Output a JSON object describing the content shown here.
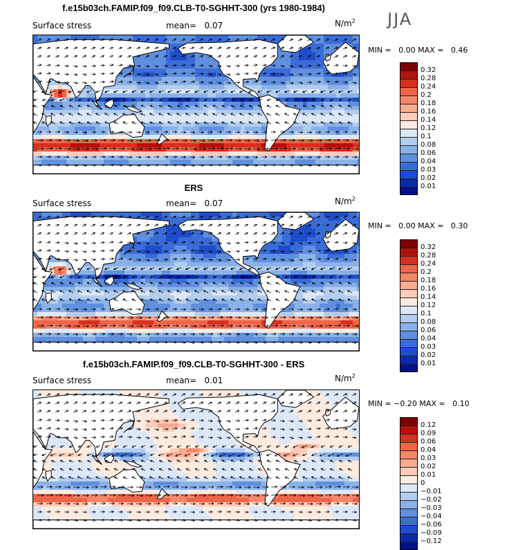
{
  "season": "JJA",
  "panels": [
    {
      "title": "f.e15b03ch.FAMIP.f09_f09.CLB-T0-SGHHT-300 (yrs 1980-1984)",
      "field": "Surface stress",
      "mean_label": "mean=",
      "mean_value": "0.07",
      "units": "N/m",
      "units_exp": "2",
      "minmax": "MIN =   0.00 MAX =   0.46",
      "colorbar": {
        "labels": [
          "0.32",
          "0.28",
          "0.24",
          "0.2",
          "0.18",
          "0.16",
          "0.14",
          "0.12",
          "0.1",
          "0.08",
          "0.06",
          "0.04",
          "0.03",
          "0.02",
          "0.01"
        ],
        "colors": [
          "#7f0000",
          "#b0120c",
          "#d7301f",
          "#ef6548",
          "#f4866a",
          "#f9aa8f",
          "#fdccb8",
          "#fdebe0",
          "#dce8f7",
          "#b3cdef",
          "#8bb2e8",
          "#5f8fde",
          "#3a6cd6",
          "#1f4cc8",
          "#0b2aa8",
          "#03108a"
        ]
      }
    },
    {
      "title": "ERS",
      "field": "Surface stress",
      "mean_label": "mean=",
      "mean_value": "0.07",
      "units": "N/m",
      "units_exp": "2",
      "minmax": "MIN =   0.00 MAX =   0.30",
      "colorbar": {
        "labels": [
          "0.32",
          "0.28",
          "0.24",
          "0.2",
          "0.18",
          "0.16",
          "0.14",
          "0.12",
          "0.1",
          "0.08",
          "0.06",
          "0.04",
          "0.03",
          "0.02",
          "0.01"
        ],
        "colors": [
          "#7f0000",
          "#b0120c",
          "#d7301f",
          "#ef6548",
          "#f4866a",
          "#f9aa8f",
          "#fdccb8",
          "#fdebe0",
          "#dce8f7",
          "#b3cdef",
          "#8bb2e8",
          "#5f8fde",
          "#3a6cd6",
          "#1f4cc8",
          "#0b2aa8",
          "#03108a"
        ]
      }
    },
    {
      "title": "f.e15b03ch.FAMIP.f09_f09.CLB-T0-SGHHT-300 - ERS",
      "field": "Surface stress",
      "mean_label": "mean=",
      "mean_value": "0.01",
      "units": "N/m",
      "units_exp": "2",
      "minmax": "MIN = −0.20 MAX =   0.10",
      "colorbar": {
        "labels": [
          "0.12",
          "0.09",
          "0.06",
          "0.04",
          "0.03",
          "0.02",
          "0.01",
          "0",
          "−0.01",
          "−0.02",
          "−0.03",
          "−0.04",
          "−0.06",
          "−0.09",
          "−0.12"
        ],
        "colors": [
          "#7f0000",
          "#b0120c",
          "#d7301f",
          "#ef6548",
          "#f4866a",
          "#f9aa8f",
          "#fdccb8",
          "#fdebe0",
          "#dce8f7",
          "#b3cdef",
          "#8bb2e8",
          "#5f8fde",
          "#3a6cd6",
          "#1f4cc8",
          "#0b2aa8",
          "#03108a"
        ]
      }
    }
  ],
  "chart_data": {
    "type": "heatmap",
    "variable": "Surface stress",
    "units": "N/m2",
    "season": "JJA",
    "maps": [
      {
        "name": "f.e15b03ch.FAMIP.f09_f09.CLB-T0-SGHHT-300 (yrs 1980-1984)",
        "mean": 0.07,
        "min": 0.0,
        "max": 0.46
      },
      {
        "name": "ERS",
        "mean": 0.07,
        "min": 0.0,
        "max": 0.3
      },
      {
        "name": "f.e15b03ch.FAMIP.f09_f09.CLB-T0-SGHHT-300 - ERS",
        "mean": 0.01,
        "min": -0.2,
        "max": 0.1
      }
    ]
  }
}
